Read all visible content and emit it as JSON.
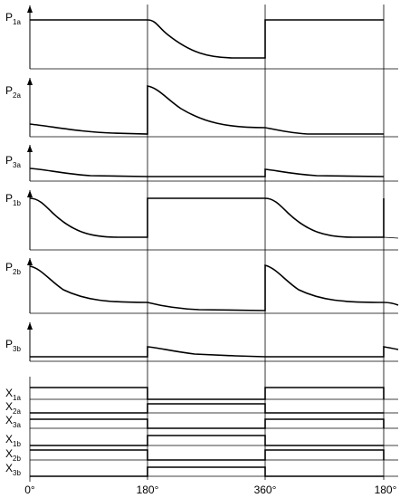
{
  "signals": [
    {
      "main": "P",
      "sub": "1a"
    },
    {
      "main": "P",
      "sub": "2a"
    },
    {
      "main": "P",
      "sub": "3a"
    },
    {
      "main": "P",
      "sub": "1b"
    },
    {
      "main": "P",
      "sub": "2b"
    },
    {
      "main": "P",
      "sub": "3b"
    }
  ],
  "x_signals": [
    {
      "main": "X",
      "sub": "1a"
    },
    {
      "main": "X",
      "sub": "2a"
    },
    {
      "main": "X",
      "sub": "3a"
    },
    {
      "main": "X",
      "sub": "1b"
    },
    {
      "main": "X",
      "sub": "2b"
    },
    {
      "main": "X",
      "sub": "3b"
    }
  ],
  "x_ticks": [
    "0°",
    "180°",
    "360°",
    "180°"
  ]
}
